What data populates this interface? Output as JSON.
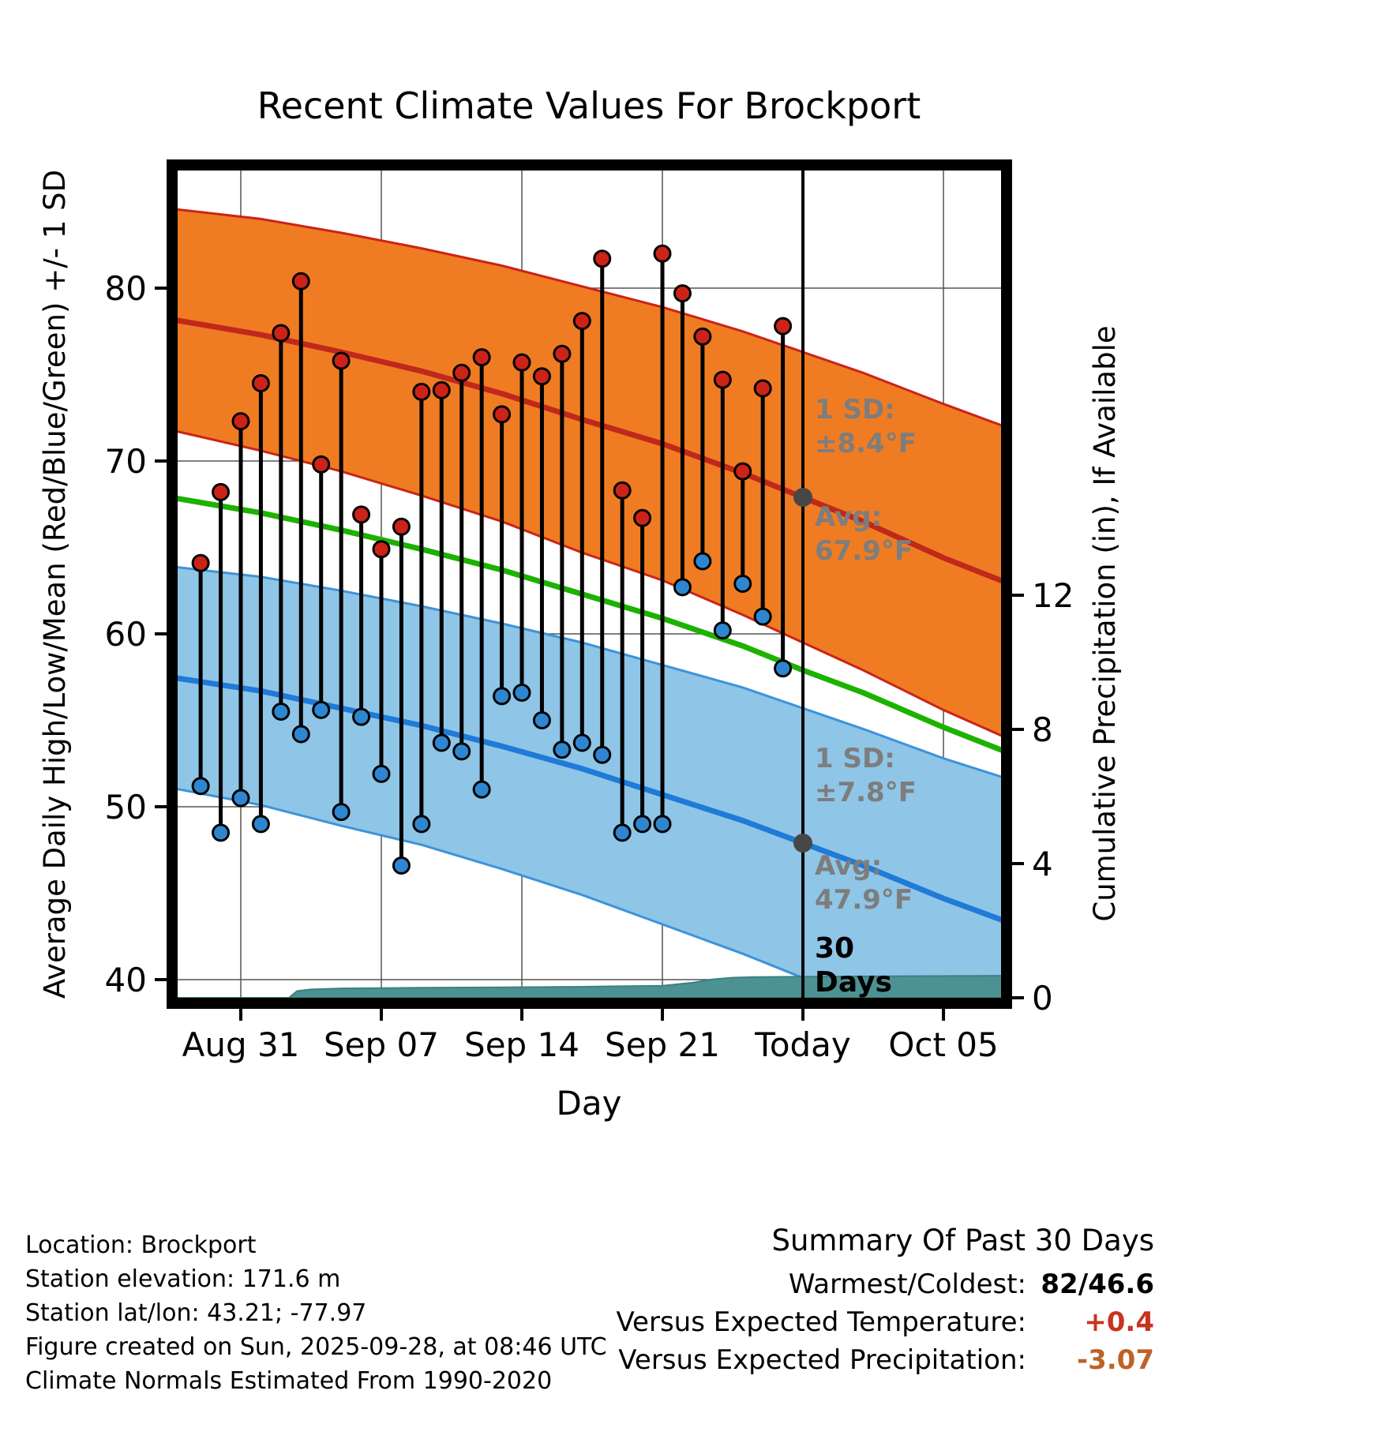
{
  "title": "Recent Climate Values For Brockport",
  "axes": {
    "x_label": "Day",
    "y_left_label": "Average Daily High/Low/Mean (Red/Blue/Green) +/- 1 SD",
    "y_right_label": "Cumulative Precipitation (in), If Available",
    "x_tick_labels": [
      "Aug 31",
      "Sep 07",
      "Sep 14",
      "Sep 21",
      "Today",
      "Oct 05"
    ],
    "x_tick_days": [
      3,
      10,
      17,
      24,
      31,
      38
    ],
    "y_left_ticks": [
      40,
      50,
      60,
      70,
      80
    ],
    "y_right_ticks": [
      0,
      4,
      8,
      12
    ]
  },
  "annotations": {
    "high_sd": {
      "lines": [
        "1 SD:",
        "±8.4°F"
      ]
    },
    "high_avg": {
      "lines": [
        "Avg:",
        "67.9°F"
      ]
    },
    "low_sd": {
      "lines": [
        "1 SD:",
        "±7.8°F"
      ]
    },
    "low_avg": {
      "lines": [
        "Avg:",
        "47.9°F"
      ]
    },
    "window": {
      "lines": [
        "30",
        "Days"
      ]
    }
  },
  "colors": {
    "high_band": "#ef7c22",
    "high_edge": "#cc2318",
    "high_line": "#c0281c",
    "low_band": "#8fc5e6",
    "low_edge": "#3d93d9",
    "low_line": "#1f7ad8",
    "mean_line": "#1cb200",
    "precip_fill": "#4d9292",
    "precip_edge": "#3c8181",
    "high_dot": "#cc2318",
    "low_dot": "#2e86d0",
    "today_dot": "#474747",
    "annotation_gray": "#7d7d7d"
  },
  "chart_data": {
    "type": "line",
    "title": "Recent Climate Values For Brockport",
    "xlabel": "Day",
    "ylabel_left": "Average Daily High/Low/Mean (Red/Blue/Green) +/- 1 SD",
    "ylabel_right": "Cumulative Precipitation (in), If Available",
    "y_left_range": [
      38,
      87
    ],
    "y_right_range": [
      0,
      25
    ],
    "grid": true,
    "today_day": 31,
    "today_high_avg": 67.9,
    "today_low_avg": 47.9,
    "high_sd_value": 8.4,
    "low_sd_value": 7.8,
    "bands": {
      "days": [
        -0.5,
        4,
        8,
        12,
        16,
        20,
        24,
        28,
        31,
        34,
        38,
        41.5
      ],
      "high_upper": [
        84.6,
        84.0,
        83.2,
        82.3,
        81.3,
        80.1,
        78.9,
        77.5,
        76.3,
        75.1,
        73.3,
        71.8
      ],
      "high_mean": [
        78.2,
        77.3,
        76.3,
        75.2,
        73.9,
        72.4,
        71.0,
        69.3,
        67.9,
        66.5,
        64.4,
        62.8
      ],
      "high_lower": [
        71.8,
        70.6,
        69.4,
        68.0,
        66.5,
        64.7,
        63.1,
        61.1,
        59.5,
        57.9,
        55.6,
        53.8
      ],
      "green_mean": [
        67.9,
        67.0,
        66.0,
        64.9,
        63.7,
        62.3,
        60.9,
        59.3,
        57.9,
        56.6,
        54.6,
        53.0
      ],
      "low_upper": [
        63.9,
        63.3,
        62.5,
        61.6,
        60.6,
        59.5,
        58.2,
        56.9,
        55.7,
        54.5,
        52.8,
        51.5
      ],
      "low_mean": [
        57.5,
        56.7,
        55.7,
        54.7,
        53.5,
        52.2,
        50.7,
        49.2,
        47.9,
        46.6,
        44.7,
        43.2
      ],
      "low_lower": [
        51.1,
        50.1,
        48.9,
        47.8,
        46.4,
        44.9,
        43.2,
        41.5,
        40.1,
        38.7,
        36.6,
        35.0
      ]
    },
    "daily": {
      "days": [
        1,
        2,
        3,
        4,
        5,
        6,
        7,
        8,
        9,
        10,
        11,
        12,
        13,
        14,
        15,
        16,
        17,
        18,
        19,
        20,
        21,
        22,
        23,
        24,
        25,
        26,
        27,
        28,
        29,
        30
      ],
      "high": [
        64.1,
        68.2,
        72.3,
        74.5,
        77.4,
        80.4,
        69.8,
        75.8,
        66.9,
        64.9,
        66.2,
        74.0,
        74.1,
        75.1,
        76.0,
        72.7,
        75.7,
        74.9,
        76.2,
        78.1,
        81.7,
        68.3,
        66.7,
        82.0,
        79.7,
        77.2,
        74.7,
        69.4,
        74.2,
        77.8
      ],
      "low": [
        51.2,
        48.5,
        50.5,
        49.0,
        55.5,
        54.2,
        55.6,
        49.7,
        55.2,
        51.9,
        46.6,
        49.0,
        53.7,
        53.2,
        51.0,
        56.4,
        56.6,
        55.0,
        53.3,
        53.7,
        53.0,
        48.5,
        49.0,
        49.0,
        62.7,
        64.2,
        60.2,
        62.9,
        61.0,
        58.0
      ]
    },
    "precip": {
      "days": [
        -0.5,
        5.4,
        5.8,
        6.5,
        8,
        12,
        16,
        20,
        24,
        25.5,
        26.5,
        27.5,
        28.5,
        31,
        41.5
      ],
      "cumulative_in": [
        0,
        0,
        0.2,
        0.25,
        0.28,
        0.3,
        0.31,
        0.33,
        0.36,
        0.45,
        0.55,
        0.6,
        0.62,
        0.63,
        0.66
      ]
    }
  },
  "footer": {
    "lines": [
      "Location: Brockport",
      "Station elevation: 171.6 m",
      "Station lat/lon: 43.21; -77.97",
      "Figure created on Sun, 2025-09-28, at 08:46 UTC",
      "Climate Normals Estimated From 1990-2020"
    ]
  },
  "summary": {
    "title": "Summary Of Past 30 Days",
    "rows": [
      {
        "label": "Warmest/Coldest:",
        "value": "82/46.6",
        "value_color": "#000000"
      },
      {
        "label": "Versus Expected Temperature:",
        "value": "+0.4",
        "value_color": "#c8341f"
      },
      {
        "label": "Versus Expected Precipitation:",
        "value": "-3.07",
        "value_color": "#bf6226"
      }
    ]
  }
}
